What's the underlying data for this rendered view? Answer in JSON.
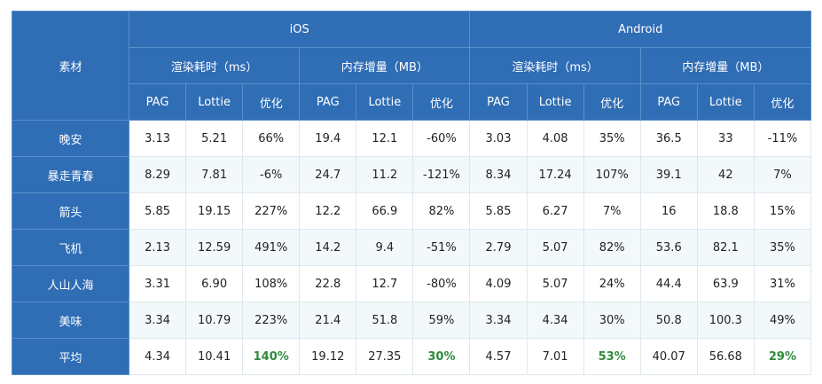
{
  "table": {
    "corner": "素材",
    "platforms": [
      "iOS",
      "Android"
    ],
    "metrics": [
      "渲染耗时（ms）",
      "内存增量（MB）",
      "渲染耗时（ms）",
      "内存增量（MB）"
    ],
    "columns": [
      "PAG",
      "Lottie",
      "优化",
      "PAG",
      "Lottie",
      "优化",
      "PAG",
      "Lottie",
      "优化",
      "PAG",
      "Lottie",
      "优化"
    ],
    "rows": [
      [
        "晚安",
        "3.13",
        "5.21",
        "66%",
        "19.4",
        "12.1",
        "-60%",
        "3.03",
        "4.08",
        "35%",
        "36.5",
        "33",
        "-11%"
      ],
      [
        "暴走青春",
        "8.29",
        "7.81",
        "-6%",
        "24.7",
        "11.2",
        "-121%",
        "8.34",
        "17.24",
        "107%",
        "39.1",
        "42",
        "7%"
      ],
      [
        "箭头",
        "5.85",
        "19.15",
        "227%",
        "12.2",
        "66.9",
        "82%",
        "5.85",
        "6.27",
        "7%",
        "16",
        "18.8",
        "15%"
      ],
      [
        "飞机",
        "2.13",
        "12.59",
        "491%",
        "14.2",
        "9.4",
        "-51%",
        "2.79",
        "5.07",
        "82%",
        "53.6",
        "82.1",
        "35%"
      ],
      [
        "人山人海",
        "3.31",
        "6.90",
        "108%",
        "22.8",
        "12.7",
        "-80%",
        "4.09",
        "5.07",
        "24%",
        "44.4",
        "63.9",
        "31%"
      ],
      [
        "美味",
        "3.34",
        "10.79",
        "223%",
        "21.4",
        "51.8",
        "59%",
        "3.34",
        "4.34",
        "30%",
        "50.8",
        "100.3",
        "49%"
      ],
      [
        "平均",
        "4.34",
        "10.41",
        "140%",
        "19.12",
        "27.35",
        "30%",
        "4.57",
        "7.01",
        "53%",
        "40.07",
        "56.68",
        "29%"
      ]
    ]
  }
}
